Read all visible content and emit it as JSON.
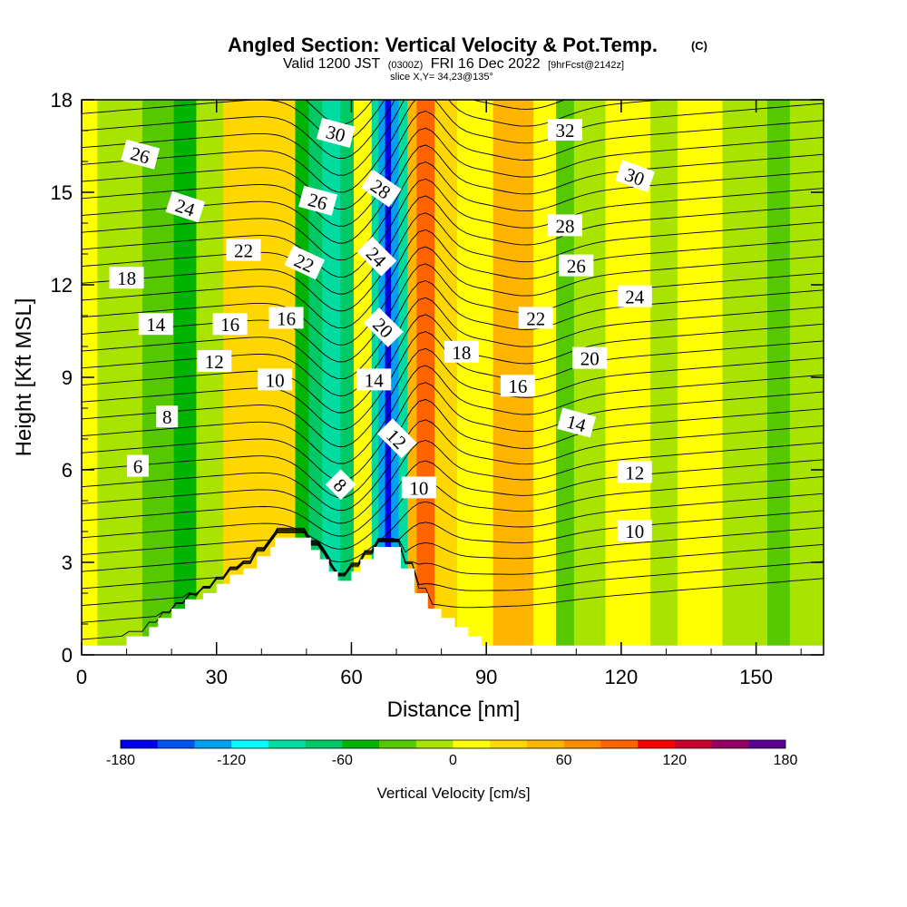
{
  "title": {
    "main": "Angled Section: Vertical Velocity & Pot.Temp.",
    "unit": "(C)",
    "valid_a": "Valid 1200 JST",
    "valid_b": "(0300Z)",
    "valid_c": "FRI 16 Dec 2022",
    "valid_d": "[9hrFcst@2142z]",
    "slice": "slice X,Y= 34,23@135°"
  },
  "chart_data": {
    "type": "heatmap",
    "xlabel": "Distance [nm]",
    "ylabel": "Height [Kft MSL]",
    "xlim": [
      0,
      165
    ],
    "ylim": [
      0,
      18
    ],
    "x_ticks": [
      "0",
      "30",
      "60",
      "90",
      "120",
      "150"
    ],
    "y_ticks": [
      "0",
      "3",
      "6",
      "9",
      "12",
      "15",
      "18"
    ],
    "colorbar": {
      "label": "Vertical Velocity [cm/s]",
      "tick_labels": [
        "-180",
        "-120",
        "-60",
        "0",
        "60",
        "120",
        "180"
      ],
      "colors": [
        "#0000ee",
        "#0055ee",
        "#00a0f0",
        "#00ffff",
        "#00dca0",
        "#00c864",
        "#00b400",
        "#55c800",
        "#a8e400",
        "#ffff00",
        "#ffd700",
        "#ffb400",
        "#ff8c00",
        "#ff6400",
        "#ff0000",
        "#c8002d",
        "#960064",
        "#5a0096"
      ]
    },
    "vertical_velocity_bands": [
      {
        "x": 0,
        "w": 3.5,
        "value": 5
      },
      {
        "x": 3.5,
        "w": 10,
        "value": -10
      },
      {
        "x": 13.5,
        "w": 7,
        "value": -25
      },
      {
        "x": 20.5,
        "w": 5,
        "value": -50
      },
      {
        "x": 25.5,
        "w": 6,
        "value": -20
      },
      {
        "x": 31.5,
        "w": 16,
        "value": 35
      },
      {
        "x": 47.5,
        "w": 3,
        "value": -45
      },
      {
        "x": 50.5,
        "w": 3,
        "value": -70
      },
      {
        "x": 53.5,
        "w": 4,
        "value": -95
      },
      {
        "x": 57.5,
        "w": 3,
        "value": -70
      },
      {
        "x": 60.5,
        "w": 4,
        "value": 10
      },
      {
        "x": 64.5,
        "w": 1.5,
        "value": -100
      },
      {
        "x": 66,
        "w": 1.5,
        "value": -130
      },
      {
        "x": 67.5,
        "w": 1.3,
        "value": -170
      },
      {
        "x": 68.8,
        "w": 1.7,
        "value": -130
      },
      {
        "x": 70.5,
        "w": 2,
        "value": -90
      },
      {
        "x": 72.5,
        "w": 2,
        "value": 40
      },
      {
        "x": 74.5,
        "w": 4,
        "value": 80
      },
      {
        "x": 78.5,
        "w": 5,
        "value": 35
      },
      {
        "x": 83.5,
        "w": 8,
        "value": 5
      },
      {
        "x": 91.5,
        "w": 9,
        "value": 40
      },
      {
        "x": 100.5,
        "w": 5,
        "value": 5
      },
      {
        "x": 105.5,
        "w": 4,
        "value": -40
      },
      {
        "x": 109.5,
        "w": 7,
        "value": -15
      },
      {
        "x": 116.5,
        "w": 10,
        "value": 5
      },
      {
        "x": 126.5,
        "w": 6,
        "value": -15
      },
      {
        "x": 132.5,
        "w": 10,
        "value": 5
      },
      {
        "x": 142.5,
        "w": 10,
        "value": -15
      },
      {
        "x": 152.5,
        "w": 5,
        "value": -30
      },
      {
        "x": 157.5,
        "w": 7.5,
        "value": -10
      }
    ],
    "terrain": [
      [
        0,
        0.3
      ],
      [
        10,
        0.3
      ],
      [
        10,
        0.6
      ],
      [
        15,
        0.6
      ],
      [
        15,
        0.9
      ],
      [
        17,
        0.9
      ],
      [
        17,
        1.2
      ],
      [
        20,
        1.2
      ],
      [
        20,
        1.5
      ],
      [
        23,
        1.5
      ],
      [
        23,
        1.8
      ],
      [
        27,
        1.8
      ],
      [
        27,
        2.0
      ],
      [
        30,
        2.0
      ],
      [
        30,
        2.3
      ],
      [
        33,
        2.3
      ],
      [
        33,
        2.6
      ],
      [
        36,
        2.6
      ],
      [
        36,
        2.8
      ],
      [
        39,
        2.8
      ],
      [
        39,
        3.2
      ],
      [
        42,
        3.2
      ],
      [
        42,
        3.5
      ],
      [
        43,
        3.5
      ],
      [
        43,
        3.8
      ],
      [
        51,
        3.8
      ],
      [
        51,
        3.4
      ],
      [
        53,
        3.4
      ],
      [
        53,
        3.1
      ],
      [
        55,
        3.1
      ],
      [
        55,
        2.7
      ],
      [
        57,
        2.7
      ],
      [
        57,
        2.4
      ],
      [
        60,
        2.4
      ],
      [
        60,
        2.7
      ],
      [
        62,
        2.7
      ],
      [
        62,
        3.1
      ],
      [
        65,
        3.1
      ],
      [
        65,
        3.5
      ],
      [
        71,
        3.5
      ],
      [
        71,
        2.8
      ],
      [
        74,
        2.8
      ],
      [
        74,
        2.0
      ],
      [
        77,
        2.0
      ],
      [
        77,
        1.5
      ],
      [
        80,
        1.5
      ],
      [
        80,
        1.2
      ],
      [
        83,
        1.2
      ],
      [
        83,
        0.9
      ],
      [
        86,
        0.9
      ],
      [
        86,
        0.6
      ],
      [
        89,
        0.6
      ],
      [
        89,
        0.3
      ],
      [
        165,
        0.3
      ]
    ],
    "theta_levels": [
      2,
      3,
      4,
      5,
      6,
      7,
      8,
      9,
      10,
      11,
      12,
      13,
      14,
      15,
      16,
      17,
      18,
      19,
      20,
      21,
      22,
      23,
      24,
      25,
      26,
      27,
      28,
      29,
      30,
      31,
      32,
      33,
      34
    ],
    "contour_labels": [
      {
        "text": "26",
        "x": 13,
        "y": 16.2,
        "angle": 15
      },
      {
        "text": "24",
        "x": 23,
        "y": 14.5,
        "angle": 18
      },
      {
        "text": "22",
        "x": 36,
        "y": 13.1,
        "angle": 0
      },
      {
        "text": "18",
        "x": 10,
        "y": 12.2,
        "angle": 0
      },
      {
        "text": "22",
        "x": 49.5,
        "y": 12.7,
        "angle": 25
      },
      {
        "text": "26",
        "x": 52.5,
        "y": 14.7,
        "angle": 15
      },
      {
        "text": "30",
        "x": 56.5,
        "y": 16.9,
        "angle": 15
      },
      {
        "text": "28",
        "x": 66.5,
        "y": 15.1,
        "angle": 35
      },
      {
        "text": "24",
        "x": 65.5,
        "y": 12.9,
        "angle": 45
      },
      {
        "text": "20",
        "x": 67,
        "y": 10.6,
        "angle": 45
      },
      {
        "text": "14",
        "x": 65,
        "y": 8.9,
        "angle": 0
      },
      {
        "text": "12",
        "x": 70,
        "y": 7.0,
        "angle": 45
      },
      {
        "text": "10",
        "x": 75,
        "y": 5.4,
        "angle": 0
      },
      {
        "text": "8",
        "x": 57.5,
        "y": 5.5,
        "angle": 45
      },
      {
        "text": "16",
        "x": 45.5,
        "y": 10.9,
        "angle": 0
      },
      {
        "text": "16",
        "x": 33,
        "y": 10.7,
        "angle": 0
      },
      {
        "text": "14",
        "x": 16.5,
        "y": 10.7,
        "angle": 0
      },
      {
        "text": "12",
        "x": 29.5,
        "y": 9.5,
        "angle": 0
      },
      {
        "text": "10",
        "x": 43,
        "y": 8.9,
        "angle": 0
      },
      {
        "text": "8",
        "x": 19,
        "y": 7.7,
        "angle": 0
      },
      {
        "text": "6",
        "x": 12.5,
        "y": 6.1,
        "angle": 0
      },
      {
        "text": "32",
        "x": 107.5,
        "y": 17.0,
        "angle": 0
      },
      {
        "text": "30",
        "x": 123,
        "y": 15.5,
        "angle": 20
      },
      {
        "text": "28",
        "x": 107.5,
        "y": 13.9,
        "angle": 0
      },
      {
        "text": "26",
        "x": 110,
        "y": 12.6,
        "angle": 0
      },
      {
        "text": "24",
        "x": 123,
        "y": 11.6,
        "angle": 0
      },
      {
        "text": "22",
        "x": 101,
        "y": 10.9,
        "angle": 0
      },
      {
        "text": "18",
        "x": 84.5,
        "y": 9.8,
        "angle": 0
      },
      {
        "text": "20",
        "x": 113,
        "y": 9.6,
        "angle": 0
      },
      {
        "text": "16",
        "x": 97,
        "y": 8.7,
        "angle": 0
      },
      {
        "text": "14",
        "x": 110,
        "y": 7.5,
        "angle": 15
      },
      {
        "text": "12",
        "x": 123,
        "y": 5.9,
        "angle": 0
      },
      {
        "text": "10",
        "x": 123,
        "y": 4.0,
        "angle": 0
      }
    ]
  }
}
